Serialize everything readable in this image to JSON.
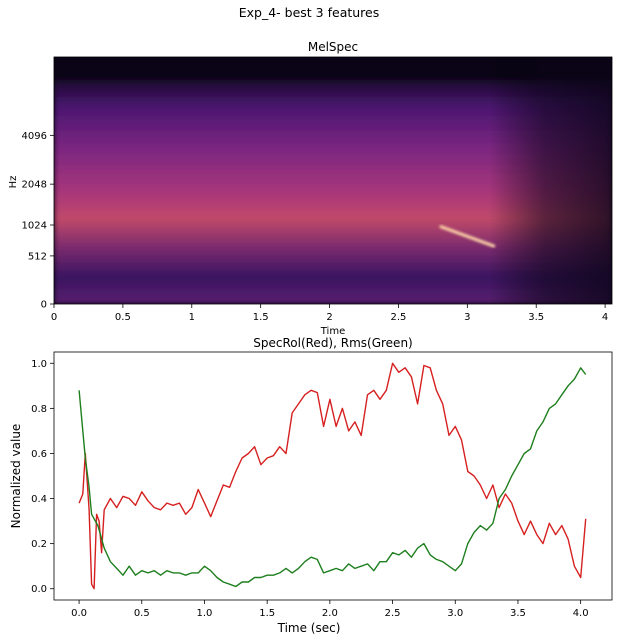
{
  "suptitle": "Exp_4- best 3 features",
  "chart_data": [
    {
      "type": "heatmap",
      "title": "MelSpec",
      "xlabel": "Time",
      "ylabel": "Hz",
      "xlim": [
        0,
        4.05
      ],
      "xticks": [
        0,
        0.5,
        1,
        1.5,
        2,
        2.5,
        3,
        3.5,
        4
      ],
      "xtick_labels": [
        "0",
        "0.5",
        "1",
        "1.5",
        "2",
        "2.5",
        "3",
        "3.5",
        "4"
      ],
      "yscale": "mel",
      "yticks": [
        0,
        512,
        1024,
        2048,
        4096
      ],
      "yticks_labels": [
        "0",
        "512",
        "1024",
        "2048",
        "4096"
      ],
      "colormap": "magma",
      "features": [
        {
          "name": "tone",
          "t_start": 0.3,
          "t_end": 2.2,
          "freq": 1090
        },
        {
          "name": "tone",
          "t_start": 2.2,
          "t_end": 2.8,
          "freq": 1500
        },
        {
          "name": "chirp",
          "t_start": 2.8,
          "t_end": 3.2,
          "freq_start": 1000,
          "freq_end": 650
        },
        {
          "name": "harmonics",
          "t_start": 1.5,
          "t_end": 3.2,
          "freq": 2300
        }
      ]
    },
    {
      "type": "line",
      "title": "SpecRol(Red), Rms(Green)",
      "xlabel": "Time (sec)",
      "ylabel": "Normalized value",
      "xlim": [
        -0.2,
        4.25
      ],
      "ylim": [
        -0.05,
        1.05
      ],
      "xticks": [
        0,
        0.5,
        1,
        1.5,
        2,
        2.5,
        3,
        3.5,
        4
      ],
      "xtick_labels": [
        "0.0",
        "0.5",
        "1.0",
        "1.5",
        "2.0",
        "2.5",
        "3.0",
        "3.5",
        "4.0"
      ],
      "yticks": [
        0,
        0.2,
        0.4,
        0.6,
        0.8,
        1.0
      ],
      "ytick_labels": [
        "0.0",
        "0.2",
        "0.4",
        "0.6",
        "0.8",
        "1.0"
      ],
      "series": [
        {
          "color": "#d62020",
          "points": [
            [
              0.0,
              0.38
            ],
            [
              0.03,
              0.42
            ],
            [
              0.05,
              0.6
            ],
            [
              0.08,
              0.35
            ],
            [
              0.1,
              0.02
            ],
            [
              0.12,
              0.0
            ],
            [
              0.14,
              0.33
            ],
            [
              0.16,
              0.3
            ],
            [
              0.18,
              0.16
            ],
            [
              0.2,
              0.35
            ],
            [
              0.25,
              0.4
            ],
            [
              0.3,
              0.36
            ],
            [
              0.35,
              0.41
            ],
            [
              0.4,
              0.4
            ],
            [
              0.45,
              0.37
            ],
            [
              0.5,
              0.43
            ],
            [
              0.55,
              0.39
            ],
            [
              0.6,
              0.36
            ],
            [
              0.65,
              0.35
            ],
            [
              0.7,
              0.38
            ],
            [
              0.75,
              0.37
            ],
            [
              0.8,
              0.38
            ],
            [
              0.85,
              0.33
            ],
            [
              0.9,
              0.36
            ],
            [
              0.95,
              0.44
            ],
            [
              1.0,
              0.38
            ],
            [
              1.05,
              0.32
            ],
            [
              1.1,
              0.39
            ],
            [
              1.15,
              0.46
            ],
            [
              1.2,
              0.45
            ],
            [
              1.25,
              0.52
            ],
            [
              1.3,
              0.58
            ],
            [
              1.35,
              0.6
            ],
            [
              1.4,
              0.63
            ],
            [
              1.45,
              0.55
            ],
            [
              1.5,
              0.58
            ],
            [
              1.55,
              0.59
            ],
            [
              1.6,
              0.63
            ],
            [
              1.65,
              0.6
            ],
            [
              1.7,
              0.78
            ],
            [
              1.75,
              0.82
            ],
            [
              1.8,
              0.86
            ],
            [
              1.85,
              0.88
            ],
            [
              1.9,
              0.87
            ],
            [
              1.95,
              0.72
            ],
            [
              2.0,
              0.84
            ],
            [
              2.05,
              0.72
            ],
            [
              2.1,
              0.8
            ],
            [
              2.15,
              0.7
            ],
            [
              2.2,
              0.74
            ],
            [
              2.25,
              0.68
            ],
            [
              2.3,
              0.86
            ],
            [
              2.35,
              0.88
            ],
            [
              2.4,
              0.84
            ],
            [
              2.45,
              0.88
            ],
            [
              2.5,
              1.0
            ],
            [
              2.55,
              0.96
            ],
            [
              2.6,
              0.98
            ],
            [
              2.65,
              0.94
            ],
            [
              2.7,
              0.82
            ],
            [
              2.75,
              0.99
            ],
            [
              2.8,
              0.98
            ],
            [
              2.85,
              0.88
            ],
            [
              2.9,
              0.82
            ],
            [
              2.95,
              0.68
            ],
            [
              3.0,
              0.72
            ],
            [
              3.05,
              0.66
            ],
            [
              3.1,
              0.52
            ],
            [
              3.15,
              0.5
            ],
            [
              3.2,
              0.46
            ],
            [
              3.25,
              0.4
            ],
            [
              3.3,
              0.46
            ],
            [
              3.35,
              0.36
            ],
            [
              3.4,
              0.42
            ],
            [
              3.45,
              0.38
            ],
            [
              3.5,
              0.3
            ],
            [
              3.55,
              0.24
            ],
            [
              3.6,
              0.3
            ],
            [
              3.65,
              0.24
            ],
            [
              3.7,
              0.2
            ],
            [
              3.75,
              0.29
            ],
            [
              3.8,
              0.24
            ],
            [
              3.85,
              0.28
            ],
            [
              3.9,
              0.22
            ],
            [
              3.95,
              0.1
            ],
            [
              4.0,
              0.05
            ],
            [
              4.04,
              0.31
            ]
          ]
        },
        {
          "color": "#1e7f1e",
          "points": [
            [
              0.0,
              0.88
            ],
            [
              0.05,
              0.58
            ],
            [
              0.08,
              0.45
            ],
            [
              0.1,
              0.33
            ],
            [
              0.15,
              0.28
            ],
            [
              0.2,
              0.18
            ],
            [
              0.25,
              0.12
            ],
            [
              0.3,
              0.09
            ],
            [
              0.35,
              0.06
            ],
            [
              0.4,
              0.1
            ],
            [
              0.45,
              0.06
            ],
            [
              0.5,
              0.08
            ],
            [
              0.55,
              0.07
            ],
            [
              0.6,
              0.08
            ],
            [
              0.65,
              0.06
            ],
            [
              0.7,
              0.08
            ],
            [
              0.75,
              0.07
            ],
            [
              0.8,
              0.07
            ],
            [
              0.85,
              0.06
            ],
            [
              0.9,
              0.07
            ],
            [
              0.95,
              0.07
            ],
            [
              1.0,
              0.1
            ],
            [
              1.05,
              0.08
            ],
            [
              1.1,
              0.05
            ],
            [
              1.15,
              0.03
            ],
            [
              1.2,
              0.02
            ],
            [
              1.25,
              0.01
            ],
            [
              1.3,
              0.03
            ],
            [
              1.35,
              0.03
            ],
            [
              1.4,
              0.05
            ],
            [
              1.45,
              0.05
            ],
            [
              1.5,
              0.06
            ],
            [
              1.55,
              0.06
            ],
            [
              1.6,
              0.07
            ],
            [
              1.65,
              0.09
            ],
            [
              1.7,
              0.07
            ],
            [
              1.75,
              0.09
            ],
            [
              1.8,
              0.12
            ],
            [
              1.85,
              0.14
            ],
            [
              1.9,
              0.13
            ],
            [
              1.95,
              0.07
            ],
            [
              2.0,
              0.08
            ],
            [
              2.05,
              0.09
            ],
            [
              2.1,
              0.08
            ],
            [
              2.15,
              0.11
            ],
            [
              2.2,
              0.09
            ],
            [
              2.25,
              0.1
            ],
            [
              2.3,
              0.11
            ],
            [
              2.35,
              0.08
            ],
            [
              2.4,
              0.12
            ],
            [
              2.45,
              0.12
            ],
            [
              2.5,
              0.16
            ],
            [
              2.55,
              0.15
            ],
            [
              2.6,
              0.17
            ],
            [
              2.65,
              0.14
            ],
            [
              2.7,
              0.18
            ],
            [
              2.75,
              0.2
            ],
            [
              2.8,
              0.15
            ],
            [
              2.85,
              0.13
            ],
            [
              2.9,
              0.12
            ],
            [
              2.95,
              0.1
            ],
            [
              3.0,
              0.08
            ],
            [
              3.05,
              0.11
            ],
            [
              3.1,
              0.2
            ],
            [
              3.15,
              0.25
            ],
            [
              3.2,
              0.28
            ],
            [
              3.25,
              0.26
            ],
            [
              3.3,
              0.29
            ],
            [
              3.35,
              0.4
            ],
            [
              3.4,
              0.44
            ],
            [
              3.45,
              0.5
            ],
            [
              3.5,
              0.55
            ],
            [
              3.55,
              0.6
            ],
            [
              3.6,
              0.62
            ],
            [
              3.65,
              0.7
            ],
            [
              3.7,
              0.74
            ],
            [
              3.75,
              0.8
            ],
            [
              3.8,
              0.82
            ],
            [
              3.85,
              0.86
            ],
            [
              3.9,
              0.9
            ],
            [
              3.95,
              0.93
            ],
            [
              4.0,
              0.98
            ],
            [
              4.04,
              0.95
            ]
          ]
        }
      ]
    }
  ]
}
